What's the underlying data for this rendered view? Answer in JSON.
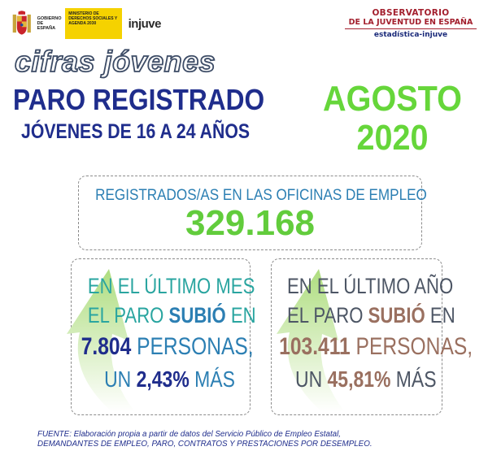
{
  "header": {
    "gobierno": "GOBIERNO DE ESPAÑA",
    "ministerio": "MINISTERIO DE DERECHOS SOCIALES Y AGENDA 2030",
    "injuve": "injuve",
    "observatorio_line1": "OBSERVATORIO",
    "observatorio_line2": "DE LA JUVENTUD EN ESPAÑA",
    "observatorio_line3": "estadística-injuve"
  },
  "titles": {
    "series": "cifras jóvenes",
    "main": "PARO REGISTRADO",
    "sub": "JÓVENES DE 16 A 24 AÑOS",
    "month": "AGOSTO",
    "year": "2020"
  },
  "registered": {
    "label": "REGISTRADOS/AS EN LAS OFICINAS DE EMPLEO",
    "value": "329.168"
  },
  "last_month": {
    "line1": "EN EL ÚLTIMO MES",
    "line2_a": "EL PARO ",
    "line2_b": "SUBIÓ",
    "line2_c": " EN",
    "amount": "7.804",
    "persons": " PERSONAS,",
    "line4_a": "UN ",
    "percent": "2,43%",
    "line4_c": " MÁS",
    "arrow_color": "#b5e28a"
  },
  "last_year": {
    "line1": "EN EL ÚLTIMO AÑO",
    "line2_a": "EL PARO ",
    "line2_b": "SUBIÓ",
    "line2_c": " EN",
    "amount": "103.411",
    "persons": " PERSONAS,",
    "line4_a": "UN ",
    "percent": "45,81%",
    "line4_c": " MÁS",
    "arrow_color": "#b5e28a"
  },
  "footer": {
    "line1": "FUENTE: Elaboración propia a partir de datos del Servicio Público de Empleo Estatal,",
    "line2": "DEMANDANTES DE EMPLEO, PARO, CONTRATOS Y PRESTACIONES POR DESEMPLEO."
  }
}
